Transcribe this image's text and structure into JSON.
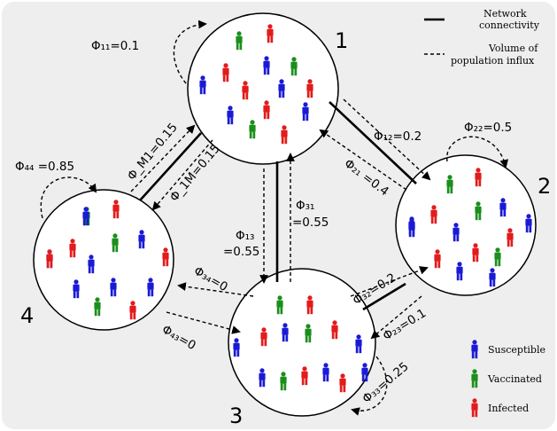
{
  "colors": {
    "background": "#eeeeee",
    "node_fill": "#ffffff",
    "line": "#000000",
    "susceptible": "#1a1ad6",
    "vaccinated": "#1b8f1b",
    "infected": "#e31b1b"
  },
  "nodes": [
    {
      "id": "1",
      "label": "1"
    },
    {
      "id": "2",
      "label": "2"
    },
    {
      "id": "3",
      "label": "3"
    },
    {
      "id": "4",
      "label": "4"
    }
  ],
  "edge_labels": {
    "phi11": "Φ₁₁=0.1",
    "phi22": "Φ₂₂=0.5",
    "phi44": "Φ₄₄ =0.85",
    "phi12": "Φ₁₂=0.2",
    "phi21": "Φ₂₁ =0.4",
    "phiM1": "Φ_M1=0.15",
    "phi1M": "Φ_1M=0.15",
    "phi13_a": "Φ₁₃",
    "phi13_b": "=0.55",
    "phi31_a": "Φ₃₁",
    "phi31_b": "=0.55",
    "phi34": "Φ₃₄=0",
    "phi43": "Φ₄₃=0",
    "phi32": "Φ₃₂=0.2",
    "phi23": "Φ₂₃=0.1",
    "phi33": "Φ₃₃=0.25"
  },
  "legend": {
    "network_line1": "Network",
    "network_line2": "connectivity",
    "influx_line1": "Volume of",
    "influx_line2": "population influx",
    "susceptible": "Susceptible",
    "vaccinated": "Vaccinated",
    "infected": "Infected"
  },
  "people": {
    "node1": [
      "v",
      "r",
      "r",
      "b",
      "r",
      "b",
      "v",
      "b",
      "r",
      "b",
      "v",
      "r",
      "b",
      "r"
    ],
    "node2": [
      "v",
      "r",
      "b",
      "r",
      "b",
      "v",
      "b",
      "b",
      "r",
      "b",
      "r",
      "v",
      "b",
      "r",
      "b"
    ],
    "node3": [
      "v",
      "r",
      "b",
      "r",
      "b",
      "v",
      "r",
      "b",
      "b",
      "v",
      "r",
      "b",
      "r",
      "b"
    ],
    "node4": [
      "v",
      "r",
      "b",
      "r",
      "b",
      "v",
      "b",
      "r",
      "b",
      "v",
      "b",
      "r",
      "b",
      "r",
      "b"
    ]
  }
}
